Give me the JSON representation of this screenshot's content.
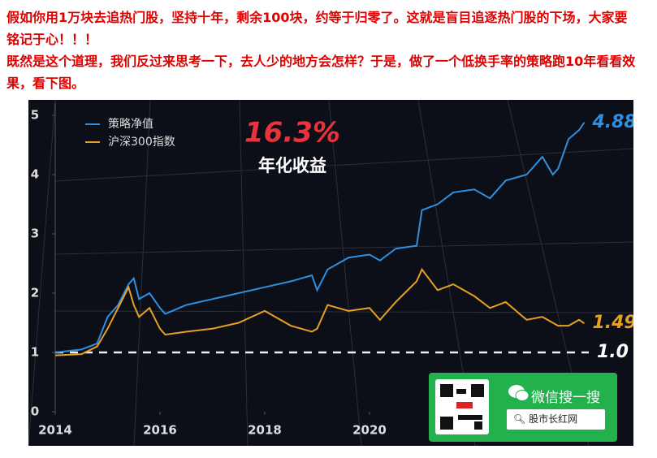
{
  "paragraphs": [
    "假如你用1万块去追热门股，坚持十年，剩余100块，约等于归零了。这就是盲目追逐热门股的下场，大家要铭记于心！！！",
    "既然是这个道理，我们反过来思考一下，去人少的地方会怎样？于是，做了一个低换手率的策略跑10年看看效果，看下图。"
  ],
  "badge": {
    "title": "微信搜一搜",
    "search": "股市长红网"
  },
  "chart_data": {
    "type": "line",
    "highlight": "16.3%",
    "highlight_caption": "年化收益",
    "x": [
      2014,
      2014.5,
      2014.8,
      2015,
      2015.2,
      2015.4,
      2015.5,
      2015.6,
      2015.8,
      2016,
      2016.1,
      2016.5,
      2017,
      2017.5,
      2018,
      2018.5,
      2018.9,
      2019,
      2019.2,
      2019.6,
      2020,
      2020.2,
      2020.5,
      2020.9,
      2021,
      2021.3,
      2021.6,
      2022,
      2022.3,
      2022.6,
      2023,
      2023.3,
      2023.5,
      2023.6,
      2023.8,
      2024,
      2024.1
    ],
    "series": [
      {
        "name": "策略净值",
        "color": "#2f8fe0",
        "end_label": "4.88",
        "values": [
          1.0,
          1.05,
          1.15,
          1.6,
          1.8,
          2.15,
          2.25,
          1.9,
          2.0,
          1.75,
          1.65,
          1.8,
          1.9,
          2.0,
          2.1,
          2.2,
          2.3,
          2.05,
          2.4,
          2.6,
          2.65,
          2.55,
          2.75,
          2.8,
          3.4,
          3.5,
          3.7,
          3.75,
          3.6,
          3.9,
          4.0,
          4.3,
          4.0,
          4.1,
          4.6,
          4.75,
          4.88
        ]
      },
      {
        "name": "沪深300指数",
        "color": "#e8a020",
        "end_label": "1.49",
        "values": [
          0.95,
          0.97,
          1.1,
          1.4,
          1.75,
          2.1,
          1.8,
          1.6,
          1.75,
          1.4,
          1.3,
          1.35,
          1.4,
          1.5,
          1.7,
          1.45,
          1.35,
          1.4,
          1.8,
          1.7,
          1.75,
          1.55,
          1.85,
          2.2,
          2.4,
          2.05,
          2.15,
          1.95,
          1.75,
          1.85,
          1.55,
          1.6,
          1.5,
          1.45,
          1.45,
          1.55,
          1.49
        ]
      }
    ],
    "reference_line": {
      "value": 1,
      "label": "1.0"
    },
    "xlim": [
      2014,
      2025
    ],
    "xticks": [
      2014,
      2016,
      2018,
      2020
    ],
    "ylim": [
      0,
      5
    ],
    "yticks": [
      0,
      1,
      2,
      3,
      4,
      5
    ]
  }
}
